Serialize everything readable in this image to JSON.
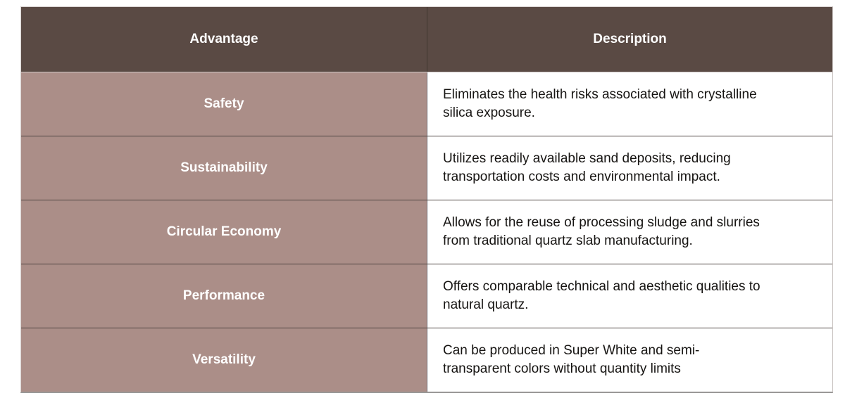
{
  "table": {
    "columns": [
      {
        "label": "Advantage"
      },
      {
        "label": "Description"
      }
    ],
    "rows": [
      {
        "advantage": "Safety",
        "description": "Eliminates the health risks associated with crystalline\nsilica exposure."
      },
      {
        "advantage": "Sustainability",
        "description": "Utilizes readily available sand deposits, reducing\ntransportation costs and environmental impact."
      },
      {
        "advantage": "Circular Economy",
        "description": "Allows for the reuse of processing sludge and slurries\nfrom traditional quartz slab manufacturing."
      },
      {
        "advantage": "Performance",
        "description": "Offers comparable technical and aesthetic qualities to\nnatural quartz."
      },
      {
        "advantage": "Versatility",
        "description": "Can be produced in Super White and semi-\ntransparent colors without quantity limits"
      }
    ]
  },
  "colors": {
    "header_background": "#5a4a44",
    "advantage_cell_background": "#ab8e88",
    "header_text": "#ffffff",
    "advantage_text": "#ffffff",
    "description_text": "#161412",
    "row_separator": "#4d4340",
    "column_divider": "#6f6a6f",
    "outer_bottom_border": "#9a9897",
    "page_background": "#ffffff"
  }
}
